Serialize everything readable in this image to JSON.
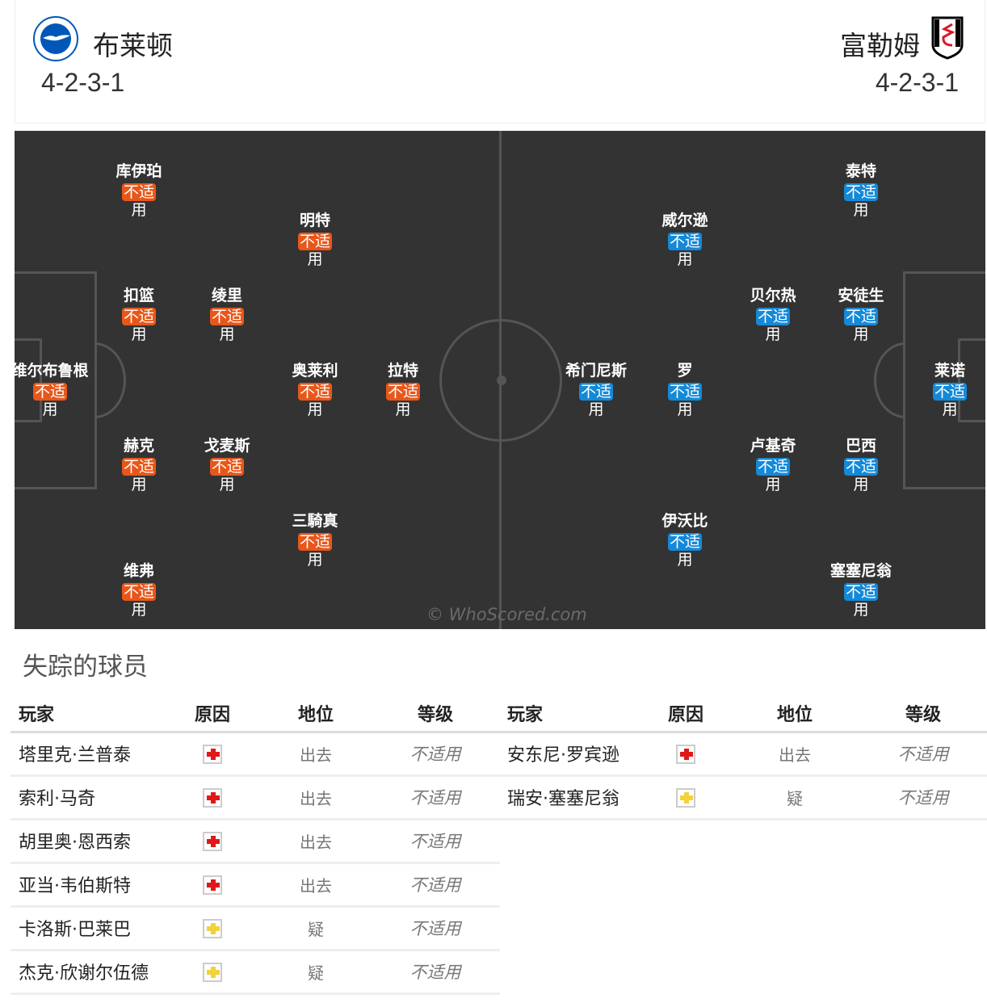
{
  "home": {
    "name": "布莱顿",
    "formation": "4-2-3-1",
    "logo_text": "BRIGHTON & HOVE ALBION",
    "color": "#e8571a",
    "players": [
      "库伊珀",
      "明特",
      "扣篮",
      "绫里",
      "维尔布鲁根",
      "奥莱利",
      "拉特",
      "赫克",
      "戈麦斯",
      "三騎真",
      "维弗"
    ]
  },
  "away": {
    "name": "富勒姆",
    "formation": "4-2-3-1",
    "color": "#1489d8",
    "players": [
      "泰特",
      "威尔逊",
      "贝尔热",
      "安徒生",
      "希门尼斯",
      "罗",
      "莱诺",
      "卢基奇",
      "巴西",
      "伊沃比",
      "塞塞尼翁"
    ]
  },
  "rating_label": "不适用",
  "watermark": "© WhoScored.com",
  "missing": {
    "title": "失踪的球员",
    "headers": [
      "玩家",
      "原因",
      "地位",
      "等级"
    ],
    "home": [
      {
        "player": "塔里克·兰普泰",
        "reason": "injury",
        "status": "出去",
        "rating": "不适用"
      },
      {
        "player": "索利·马奇",
        "reason": "injury",
        "status": "出去",
        "rating": "不适用"
      },
      {
        "player": "胡里奥·恩西索",
        "reason": "injury",
        "status": "出去",
        "rating": "不适用"
      },
      {
        "player": "亚当·韦伯斯特",
        "reason": "injury",
        "status": "出去",
        "rating": "不适用"
      },
      {
        "player": "卡洛斯·巴莱巴",
        "reason": "doubtful",
        "status": "疑",
        "rating": "不适用"
      },
      {
        "player": "杰克·欣谢尔伍德",
        "reason": "doubtful",
        "status": "疑",
        "rating": "不适用"
      }
    ],
    "away": [
      {
        "player": "安东尼·罗宾逊",
        "reason": "injury",
        "status": "出去",
        "rating": "不适用"
      },
      {
        "player": "瑞安·塞塞尼翁",
        "reason": "doubtful",
        "status": "疑",
        "rating": "不适用"
      }
    ],
    "reason_colors": {
      "injury": "#e01818",
      "doubtful": "#f2d23a"
    }
  }
}
